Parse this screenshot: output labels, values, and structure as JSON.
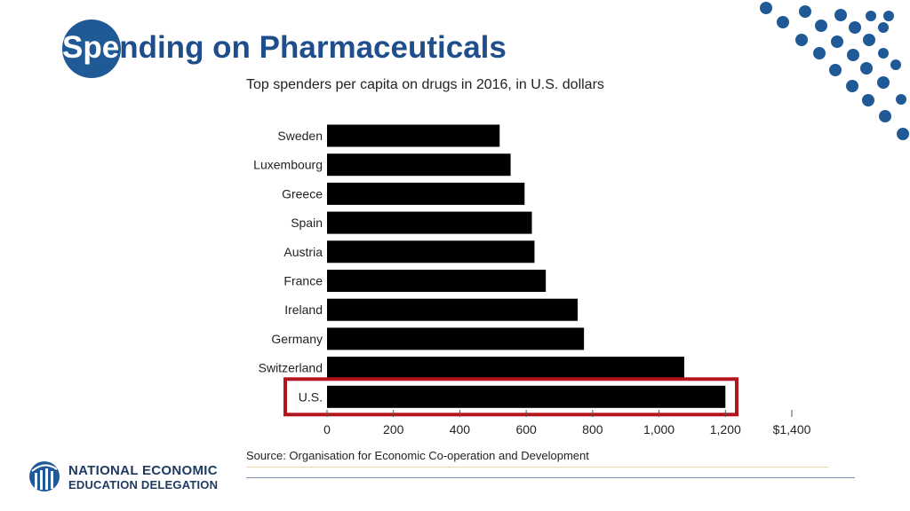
{
  "slide": {
    "title_first": "Spe",
    "title_rest": "nding on Pharmaceuticals",
    "source": "Source: Organisation for Economic Co-operation and Development"
  },
  "logo": {
    "line1": "NATIONAL ECONOMIC",
    "line2": "EDUCATION DELEGATION"
  },
  "colors": {
    "brand_blue": "#1f5a96",
    "title_blue": "#1f4e8c",
    "bar": "#000000",
    "highlight": "#b4141b"
  },
  "chart_data": {
    "type": "bar",
    "orientation": "horizontal",
    "title": "Top spenders per capita on drugs in 2016, in U.S. dollars",
    "categories": [
      "Sweden",
      "Luxembourg",
      "Greece",
      "Spain",
      "Austria",
      "France",
      "Ireland",
      "Germany",
      "Switzerland",
      "U.S."
    ],
    "values": [
      520,
      553,
      595,
      617,
      625,
      659,
      755,
      774,
      1076,
      1200
    ],
    "xlim": [
      0,
      1400
    ],
    "xticks": [
      0,
      200,
      400,
      600,
      800,
      1000,
      1200,
      1400
    ],
    "xtick_labels": [
      "0",
      "200",
      "400",
      "600",
      "800",
      "1,000",
      "1,200",
      "$1,400"
    ],
    "highlight_category": "U.S.",
    "xlabel": "",
    "ylabel": "",
    "grid": false
  }
}
